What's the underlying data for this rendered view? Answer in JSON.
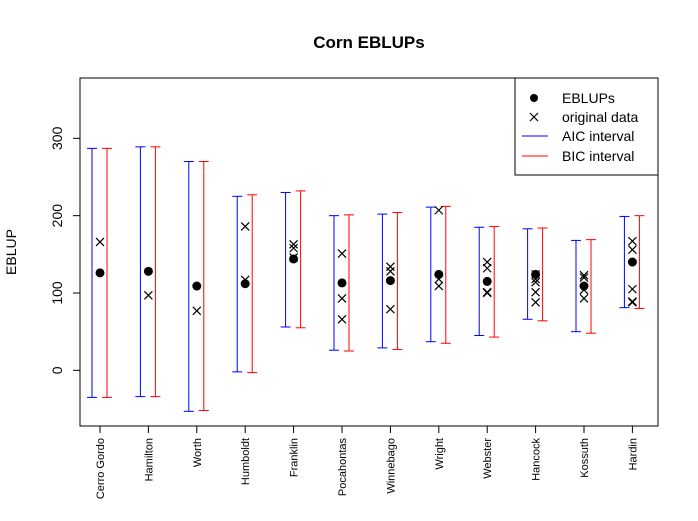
{
  "chart_data": {
    "type": "scatter",
    "title": "Corn EBLUPs",
    "xlabel": "",
    "ylabel": "EBLUP",
    "ylim": [
      -72,
      378
    ],
    "yticks": [
      0,
      100,
      200,
      300
    ],
    "categories": [
      "Cerro Gordo",
      "Hamilton",
      "Worth",
      "Humboldt",
      "Franklin",
      "Pocahontas",
      "Winnebago",
      "Wright",
      "Webster",
      "Hancock",
      "Kossuth",
      "Hardin"
    ],
    "legend": {
      "position": "top-right",
      "entries": [
        "EBLUPs",
        "original data",
        "AIC interval",
        "BIC interval"
      ]
    },
    "colors": {
      "aic": "#0000ff",
      "bic": "#ff0000",
      "points": "#000000"
    },
    "eblups": [
      126,
      128,
      109,
      112,
      144,
      113,
      116,
      124,
      115,
      124,
      109,
      140
    ],
    "original_data": [
      [
        166
      ],
      [
        97
      ],
      [
        77
      ],
      [
        186,
        117
      ],
      [
        163,
        158,
        146
      ],
      [
        151,
        93,
        66
      ],
      [
        134,
        128,
        79
      ],
      [
        207,
        118,
        109
      ],
      [
        140,
        132,
        101,
        100
      ],
      [
        124,
        118,
        114,
        101,
        88
      ],
      [
        123,
        120,
        104,
        93
      ],
      [
        167,
        156,
        105,
        89,
        88
      ]
    ],
    "aic_interval": [
      [
        -35,
        287
      ],
      [
        -34,
        289
      ],
      [
        -53,
        270
      ],
      [
        -2,
        225
      ],
      [
        56,
        230
      ],
      [
        26,
        200
      ],
      [
        29,
        202
      ],
      [
        37,
        211
      ],
      [
        45,
        185
      ],
      [
        66,
        183
      ],
      [
        50,
        168
      ],
      [
        81,
        199
      ]
    ],
    "bic_interval": [
      [
        -35,
        287
      ],
      [
        -34,
        289
      ],
      [
        -52,
        270
      ],
      [
        -3,
        227
      ],
      [
        55,
        232
      ],
      [
        25,
        201
      ],
      [
        27,
        204
      ],
      [
        35,
        212
      ],
      [
        43,
        186
      ],
      [
        64,
        184
      ],
      [
        48,
        169
      ],
      [
        80,
        200
      ]
    ]
  }
}
